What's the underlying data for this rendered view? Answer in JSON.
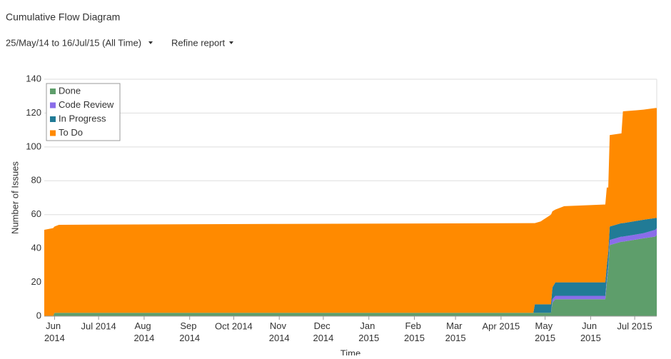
{
  "header": {
    "title": "Cumulative Flow Diagram",
    "range": "25/May/14 to 16/Jul/15 (All Time)",
    "refine": "Refine report"
  },
  "chart_data": {
    "type": "stacked_area",
    "ylabel": "Number of Issues",
    "xlabel": "Time",
    "x": [
      "2014-05-25",
      "2014-05-31",
      "2014-06-01",
      "2014-06-04",
      "2014-11-01",
      "2015-04-23",
      "2015-04-24",
      "2015-04-28",
      "2015-05-05",
      "2015-05-06",
      "2015-05-08",
      "2015-05-14",
      "2015-06-11",
      "2015-06-12",
      "2015-06-13",
      "2015-06-14",
      "2015-06-22",
      "2015-06-23",
      "2015-07-07",
      "2015-07-15",
      "2015-07-16"
    ],
    "series": [
      {
        "name": "Done",
        "color": "#5e9e6b",
        "values": [
          0,
          0,
          2,
          2,
          2,
          2,
          2,
          2,
          2,
          8,
          10,
          10,
          10,
          20,
          28,
          42,
          44,
          44,
          46,
          47,
          48
        ]
      },
      {
        "name": "Code Review",
        "color": "#8a6de9",
        "values": [
          0,
          0,
          0,
          0,
          0,
          0,
          0,
          0,
          0,
          2,
          2,
          2,
          2,
          2,
          2,
          3,
          3,
          3,
          3,
          4,
          4
        ]
      },
      {
        "name": "In Progress",
        "color": "#217b96",
        "values": [
          0,
          0,
          0,
          0,
          0,
          0,
          5,
          5,
          5,
          7,
          8,
          8,
          8,
          8,
          8,
          8,
          8,
          8,
          8,
          7,
          6
        ]
      },
      {
        "name": "To Do",
        "color": "#ff8a00",
        "values": [
          51,
          52,
          51,
          52,
          52.5,
          53,
          48,
          49,
          53,
          45,
          43,
          45,
          46,
          46,
          38,
          54,
          53,
          66,
          65,
          65,
          65
        ]
      }
    ],
    "xlim": [
      "2014-05-25",
      "2015-07-16"
    ],
    "xticks": [
      {
        "value": "2014-06-01",
        "label": "Jun\n2014"
      },
      {
        "value": "2014-07-01",
        "label": "Jul 2014"
      },
      {
        "value": "2014-08-01",
        "label": "Aug\n2014"
      },
      {
        "value": "2014-09-01",
        "label": "Sep\n2014"
      },
      {
        "value": "2014-10-01",
        "label": "Oct 2014"
      },
      {
        "value": "2014-11-01",
        "label": "Nov\n2014"
      },
      {
        "value": "2014-12-01",
        "label": "Dec\n2014"
      },
      {
        "value": "2015-01-01",
        "label": "Jan\n2015"
      },
      {
        "value": "2015-02-01",
        "label": "Feb\n2015"
      },
      {
        "value": "2015-03-01",
        "label": "Mar\n2015"
      },
      {
        "value": "2015-04-01",
        "label": "Apr 2015"
      },
      {
        "value": "2015-05-01",
        "label": "May\n2015"
      },
      {
        "value": "2015-06-01",
        "label": "Jun\n2015"
      },
      {
        "value": "2015-07-01",
        "label": "Jul 2015"
      }
    ],
    "ylim": [
      0,
      140
    ],
    "yticks": [
      0,
      20,
      40,
      60,
      80,
      100,
      120,
      140
    ],
    "grid": true,
    "legend": "upper left"
  }
}
